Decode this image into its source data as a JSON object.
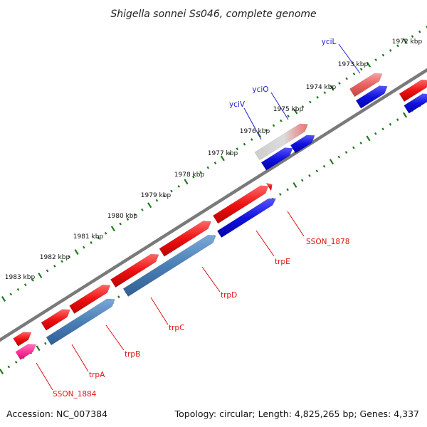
{
  "title": "Shigella sonnei Ss046, complete genome",
  "footer": {
    "accession": "Accession: NC_007384",
    "topology": "Topology: circular; Length: 4,825,265 bp; Genes: 4,337"
  },
  "colors": {
    "backbone": "#808080",
    "tick": "#1e7a1e",
    "red": "#ee1111",
    "blue": "#1111dd",
    "steel": "#4a7fb5",
    "pink": "#ff3399",
    "salmon": "#e86060",
    "gray": "#bbbbbb"
  },
  "kbp_labels": [
    {
      "text": "1972 kbp"
    },
    {
      "text": "1973 kbp"
    },
    {
      "text": "1974 kbp"
    },
    {
      "text": "1975 kbp"
    },
    {
      "text": "1976 kbp"
    },
    {
      "text": "1977 kbp"
    },
    {
      "text": "1978 kbp"
    },
    {
      "text": "1979 kbp"
    },
    {
      "text": "1980 kbp"
    },
    {
      "text": "1981 kbp"
    },
    {
      "text": "1982 kbp"
    },
    {
      "text": "1983 kbp"
    }
  ],
  "gene_labels": [
    {
      "text": "yciL",
      "color": "blue"
    },
    {
      "text": "yciO",
      "color": "blue"
    },
    {
      "text": "yciV",
      "color": "blue"
    },
    {
      "text": "SSON_1878",
      "color": "red"
    },
    {
      "text": "trpE",
      "color": "red"
    },
    {
      "text": "trpD",
      "color": "red"
    },
    {
      "text": "trpC",
      "color": "red"
    },
    {
      "text": "trpB",
      "color": "red"
    },
    {
      "text": "trpA",
      "color": "red"
    },
    {
      "text": "SSON_1884",
      "color": "red"
    }
  ]
}
